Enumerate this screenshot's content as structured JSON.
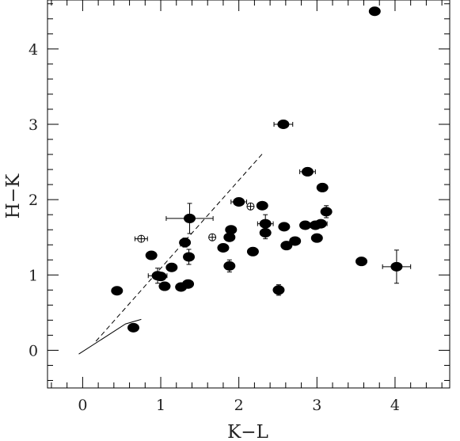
{
  "chart_data": {
    "type": "scatter",
    "title": "",
    "xlabel": "K−L",
    "ylabel": "H−K",
    "xlim": [
      -0.45,
      4.7
    ],
    "ylim": [
      -0.5,
      4.65
    ],
    "x_ticks": [
      0,
      1,
      2,
      3,
      4
    ],
    "y_ticks": [
      0,
      1,
      2,
      3,
      4
    ],
    "x_tick_labels": [
      "0",
      "1",
      "2",
      "3",
      "4"
    ],
    "y_tick_labels": [
      "0",
      "1",
      "2",
      "3",
      "4"
    ],
    "minor_tick_step": 0.2,
    "grid": false,
    "legend": "none",
    "series": [
      {
        "marker": "filled-ellipse",
        "points": [
          {
            "x": 0.44,
            "y": 0.79
          },
          {
            "x": 0.65,
            "y": 0.3,
            "yerr": 0.05
          },
          {
            "x": 0.88,
            "y": 1.26
          },
          {
            "x": 0.96,
            "y": 0.99,
            "xerr": 0.12,
            "yerr": 0.1
          },
          {
            "x": 1.0,
            "y": 0.98
          },
          {
            "x": 1.05,
            "y": 0.85
          },
          {
            "x": 1.14,
            "y": 1.1
          },
          {
            "x": 1.26,
            "y": 0.84
          },
          {
            "x": 1.31,
            "y": 1.43,
            "yerr": 0.06
          },
          {
            "x": 1.35,
            "y": 0.88
          },
          {
            "x": 1.36,
            "y": 1.24,
            "yerr": 0.1
          },
          {
            "x": 1.37,
            "y": 1.75,
            "xerr": 0.3,
            "yerr": 0.2
          },
          {
            "x": 1.8,
            "y": 1.36
          },
          {
            "x": 1.88,
            "y": 1.5
          },
          {
            "x": 1.88,
            "y": 1.12,
            "yerr": 0.08
          },
          {
            "x": 1.9,
            "y": 1.6
          },
          {
            "x": 2.0,
            "y": 1.97,
            "xerr": 0.1
          },
          {
            "x": 2.18,
            "y": 1.31
          },
          {
            "x": 2.3,
            "y": 1.92
          },
          {
            "x": 2.34,
            "y": 1.68,
            "xerr": 0.1,
            "yerr": 0.12
          },
          {
            "x": 2.34,
            "y": 1.56,
            "yerr": 0.08
          },
          {
            "x": 2.51,
            "y": 0.8,
            "yerr": 0.07
          },
          {
            "x": 2.57,
            "y": 3.0,
            "xerr": 0.12
          },
          {
            "x": 2.58,
            "y": 1.64
          },
          {
            "x": 2.61,
            "y": 1.39
          },
          {
            "x": 2.72,
            "y": 1.45
          },
          {
            "x": 2.85,
            "y": 1.66
          },
          {
            "x": 2.88,
            "y": 2.37,
            "xerr": 0.1
          },
          {
            "x": 2.98,
            "y": 1.66
          },
          {
            "x": 3.0,
            "y": 1.49
          },
          {
            "x": 3.05,
            "y": 1.68,
            "xerr": 0.08
          },
          {
            "x": 3.07,
            "y": 2.16
          },
          {
            "x": 3.12,
            "y": 1.84,
            "yerr": 0.08
          },
          {
            "x": 3.57,
            "y": 1.18
          },
          {
            "x": 3.74,
            "y": 4.5,
            "yerr": 0.05
          },
          {
            "x": 4.02,
            "y": 1.11,
            "xerr": 0.18,
            "yerr": 0.22
          }
        ]
      },
      {
        "marker": "open-circle",
        "points": [
          {
            "x": 0.75,
            "y": 1.48,
            "xerr": 0.08
          },
          {
            "x": 1.66,
            "y": 1.5
          },
          {
            "x": 2.15,
            "y": 1.91
          }
        ]
      }
    ],
    "reference_lines": [
      {
        "style": "dashed",
        "x": [
          0.17,
          2.32
        ],
        "y": [
          0.12,
          2.63
        ]
      },
      {
        "style": "solid",
        "x": [
          -0.05,
          0.55,
          0.75
        ],
        "y": [
          -0.05,
          0.35,
          0.41
        ]
      }
    ]
  }
}
